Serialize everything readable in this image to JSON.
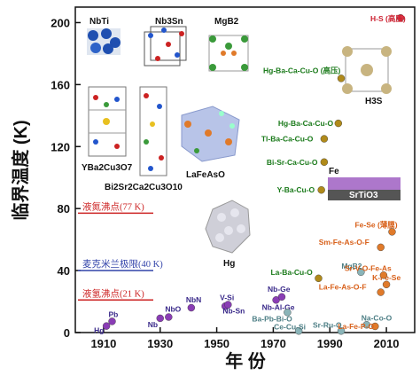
{
  "chart_data": {
    "type": "scatter",
    "xlabel": "年 份",
    "ylabel": "临界温度 (K)",
    "xlim": [
      1900,
      2020
    ],
    "ylim": [
      0,
      210
    ],
    "x_ticks": [
      "1910",
      "1930",
      "1950",
      "1970",
      "1990",
      "2010"
    ],
    "x_tick_values": [
      1910,
      1930,
      1950,
      1970,
      1990,
      2010
    ],
    "y_ticks": [
      "0",
      "40",
      "80",
      "120",
      "160",
      "200"
    ],
    "y_tick_values": [
      0,
      40,
      80,
      120,
      160,
      200
    ],
    "reference_lines": [
      {
        "label": "液氮沸点(77 K)",
        "value": 77,
        "color": "#cc2222"
      },
      {
        "label": "麦克米兰极限(40 K)",
        "value": 40,
        "color": "#3344aa"
      },
      {
        "label": "液氢沸点(21 K)",
        "value": 21,
        "color": "#cc2222"
      }
    ],
    "series": [
      {
        "color": "#8a3db5",
        "points": [
          {
            "label": "Hg",
            "x": 1911,
            "y": 4.2
          },
          {
            "label": "Pb",
            "x": 1913,
            "y": 7.2
          },
          {
            "label": "Nb",
            "x": 1930,
            "y": 9.2
          },
          {
            "label": "NbO",
            "x": 1933,
            "y": 10
          },
          {
            "label": "NbN",
            "x": 1941,
            "y": 16
          },
          {
            "label": "V-Si",
            "x": 1953,
            "y": 17
          },
          {
            "label": "Nb-Sn",
            "x": 1954,
            "y": 18
          },
          {
            "label": "Nb-Al-Ge",
            "x": 1971,
            "y": 21
          },
          {
            "label": "Nb-Ge",
            "x": 1973,
            "y": 23
          }
        ]
      },
      {
        "color": "#8ab4b8",
        "points": [
          {
            "label": "Ba-Pb-Bi-O",
            "x": 1975,
            "y": 13
          },
          {
            "label": "Ce-Cu-Si",
            "x": 1979,
            "y": 1
          },
          {
            "label": "Sr-Ru-O",
            "x": 1994,
            "y": 1
          },
          {
            "label": "Na-Co-O",
            "x": 2003,
            "y": 5
          },
          {
            "label": "MgB2",
            "x": 2001,
            "y": 39
          }
        ]
      },
      {
        "color": "#b08a1a",
        "points": [
          {
            "label": "La-Ba-Cu-O",
            "x": 1986,
            "y": 35
          },
          {
            "label": "Y-Ba-Cu-O",
            "x": 1987,
            "y": 92
          },
          {
            "label": "Bi-Sr-Ca-Cu-O",
            "x": 1988,
            "y": 110
          },
          {
            "label": "Tl-Ba-Ca-Cu-O",
            "x": 1988,
            "y": 125
          },
          {
            "label": "Hg-Ba-Ca-Cu-O",
            "x": 1993,
            "y": 135
          },
          {
            "label": "Hg-Ba-Ca-Cu-O (高压)",
            "x": 1994,
            "y": 164
          }
        ]
      },
      {
        "color": "#e07a2a",
        "points": [
          {
            "label": "La-Fe-As-O-F",
            "x": 2008,
            "y": 26
          },
          {
            "label": "La-Fe-P-O",
            "x": 2006,
            "y": 4
          },
          {
            "label": "K-Fe-Se",
            "x": 2010,
            "y": 31
          },
          {
            "label": "Sr-V-O-Fe-As",
            "x": 2009,
            "y": 37
          },
          {
            "label": "Sm-Fe-As-O-F",
            "x": 2008,
            "y": 55
          },
          {
            "label": "Fe-Se (薄膜)",
            "x": 2012,
            "y": 65
          }
        ]
      },
      {
        "color": "#dd3344",
        "points": [
          {
            "label": "H-S (高压)",
            "x": 2015,
            "y": 203
          }
        ]
      }
    ],
    "annotations": [
      "NbTi",
      "Nb3Sn",
      "MgB2",
      "YBa2Cu3O7",
      "Bi2Sr2Ca2Cu3O10",
      "LaFeAsO",
      "Hg",
      "H3S",
      "SrTiO3",
      "Fe"
    ]
  }
}
